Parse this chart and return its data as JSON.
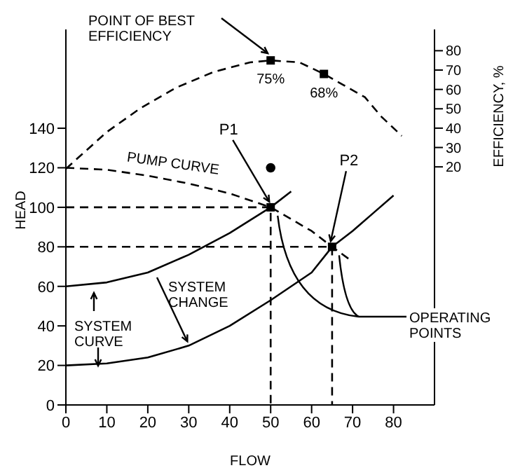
{
  "chart_data": {
    "type": "line",
    "xlabel": "FLOW",
    "ylabel": "HEAD",
    "y2label": "EFFICIENCY, %",
    "xlim": [
      0,
      90
    ],
    "xticks": [
      0,
      10,
      20,
      30,
      40,
      50,
      60,
      70,
      80
    ],
    "ylim": [
      0,
      190
    ],
    "yticks": [
      0,
      20,
      40,
      60,
      80,
      100,
      120,
      140
    ],
    "y2lim": [
      -103,
      91
    ],
    "y2ticks": [
      20,
      30,
      40,
      50,
      60,
      70,
      80
    ],
    "grid": false,
    "legend": false,
    "marker": "none",
    "annotations": [
      "POINT OF BEST EFFICIENCY",
      "SYSTEM CURVE",
      {
        "text": "SYSTEM CHANGE",
        "x": 30,
        "y": 30
      },
      "OPERATING POINTS",
      {
        "text": "P1",
        "x": 50,
        "y": 100
      },
      {
        "text": "P2",
        "x": 65,
        "y": 80
      }
    ],
    "series": [
      {
        "axis": "y2",
        "color": "#000000",
        "line_style": "dashed",
        "x": [
          0,
          10,
          18,
          27,
          36,
          45,
          50,
          57,
          63,
          68,
          73,
          77,
          82
        ],
        "values": [
          19,
          38,
          50,
          61,
          69,
          74,
          75,
          74,
          68,
          62,
          56,
          46,
          36
        ]
      },
      {
        "type": "scatter",
        "axis": "y2",
        "color": "#000000",
        "marker": "square",
        "x": [
          50,
          63
        ],
        "values": [
          75,
          68
        ],
        "value_labels": [
          "75%",
          "68%"
        ]
      },
      {
        "name": "PUMP CURVE",
        "color": "#000000",
        "line_style": "dashed",
        "x": [
          0,
          10,
          20,
          30,
          40,
          50,
          60,
          65,
          69
        ],
        "values": [
          120,
          119,
          116,
          112,
          107,
          100,
          88,
          80,
          74
        ]
      },
      {
        "color": "#000000",
        "line_style": "solid",
        "x": [
          0,
          10,
          20,
          30,
          40,
          50,
          55
        ],
        "values": [
          60,
          62,
          67,
          76,
          87,
          100,
          108
        ]
      },
      {
        "color": "#000000",
        "line_style": "solid",
        "x": [
          0,
          10,
          20,
          30,
          40,
          50,
          60,
          65,
          70,
          75,
          80
        ],
        "values": [
          20,
          21,
          24,
          30,
          40,
          53,
          67,
          80,
          88,
          97,
          106
        ]
      },
      {
        "type": "scatter",
        "color": "#000000",
        "marker": "square",
        "x": [
          50,
          65
        ],
        "values": [
          100,
          80
        ]
      },
      {
        "type": "scatter",
        "color": "#000000",
        "marker": "circle",
        "x": [
          50
        ],
        "values": [
          120
        ]
      },
      {
        "color": "#000000",
        "line_style": "dashed",
        "x": [
          0,
          50,
          50
        ],
        "values": [
          100,
          100,
          0
        ]
      },
      {
        "color": "#000000",
        "line_style": "dashed",
        "x": [
          0,
          65,
          65
        ],
        "values": [
          80,
          80,
          0
        ]
      }
    ]
  }
}
